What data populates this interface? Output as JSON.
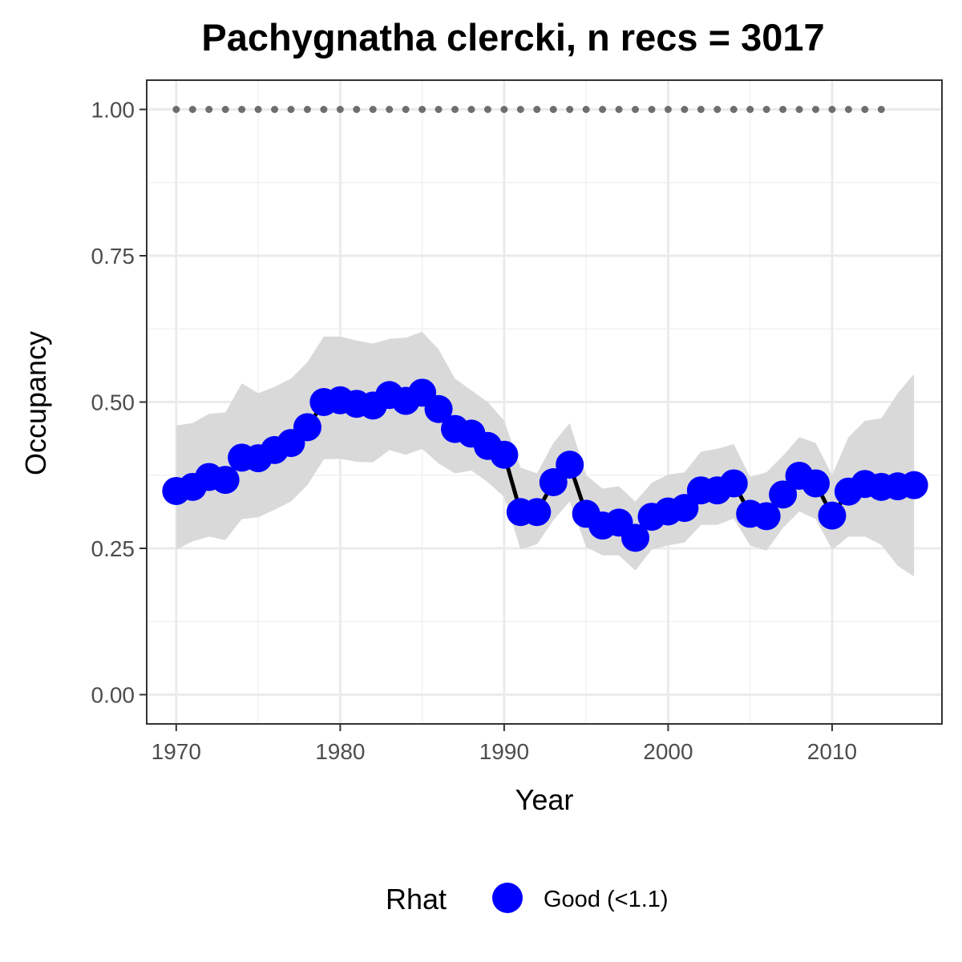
{
  "chart_data": {
    "type": "line",
    "title": "Pachygnatha clercki, n recs = 3017",
    "xlabel": "Year",
    "ylabel": "Occupancy",
    "xlim": [
      1968.2,
      2016.7
    ],
    "ylim": [
      -0.05,
      1.05
    ],
    "x_ticks": [
      1970,
      1980,
      1990,
      2000,
      2010
    ],
    "x_tick_labels": [
      "1970",
      "1980",
      "1990",
      "2000",
      "2010"
    ],
    "y_ticks": [
      0,
      0.25,
      0.5,
      0.75,
      1.0
    ],
    "y_tick_labels": [
      "0.00",
      "0.25",
      "0.50",
      "0.75",
      "1.00"
    ],
    "grid": true,
    "legend_position": "bottom",
    "legend": {
      "title": "Rhat",
      "entries": [
        {
          "label": "Good (<1.1)",
          "color": "#0000ff"
        }
      ]
    },
    "colors": {
      "points": "#0000ff",
      "line": "#000000",
      "ribbon": "#d9d9d9",
      "reference_dots": "#6e6e6e"
    },
    "reference_dots": {
      "x": [
        1970,
        1971,
        1972,
        1973,
        1974,
        1975,
        1976,
        1977,
        1978,
        1979,
        1980,
        1981,
        1982,
        1983,
        1984,
        1985,
        1986,
        1987,
        1988,
        1989,
        1990,
        1991,
        1992,
        1993,
        1994,
        1995,
        1996,
        1997,
        1998,
        1999,
        2000,
        2001,
        2002,
        2003,
        2004,
        2005,
        2006,
        2007,
        2008,
        2009,
        2010,
        2011,
        2012,
        2013
      ],
      "y": 1.0
    },
    "series": [
      {
        "x": [
          1970,
          1971,
          1972,
          1973,
          1974,
          1975,
          1976,
          1977,
          1978,
          1979,
          1980,
          1981,
          1982,
          1983,
          1984,
          1985,
          1986,
          1987,
          1988,
          1989,
          1990,
          1991,
          1992,
          1993,
          1994,
          1995,
          1996,
          1997,
          1998,
          1999,
          2000,
          2001,
          2002,
          2003,
          2004,
          2005,
          2006,
          2007,
          2008,
          2009,
          2010,
          2011,
          2012,
          2013,
          2014,
          2015
        ],
        "y": [
          0.348,
          0.355,
          0.372,
          0.367,
          0.405,
          0.404,
          0.418,
          0.43,
          0.457,
          0.5,
          0.503,
          0.497,
          0.494,
          0.512,
          0.502,
          0.516,
          0.488,
          0.454,
          0.446,
          0.425,
          0.41,
          0.312,
          0.312,
          0.363,
          0.393,
          0.309,
          0.289,
          0.294,
          0.268,
          0.304,
          0.313,
          0.319,
          0.349,
          0.349,
          0.361,
          0.309,
          0.305,
          0.342,
          0.374,
          0.361,
          0.306,
          0.347,
          0.36,
          0.355,
          0.356,
          0.358
        ],
        "lower": [
          0.248,
          0.262,
          0.27,
          0.264,
          0.3,
          0.303,
          0.316,
          0.33,
          0.358,
          0.402,
          0.403,
          0.398,
          0.397,
          0.418,
          0.41,
          0.42,
          0.395,
          0.378,
          0.383,
          0.363,
          0.338,
          0.248,
          0.257,
          0.298,
          0.33,
          0.252,
          0.238,
          0.238,
          0.212,
          0.248,
          0.255,
          0.26,
          0.29,
          0.29,
          0.301,
          0.255,
          0.246,
          0.285,
          0.313,
          0.3,
          0.248,
          0.27,
          0.27,
          0.256,
          0.22,
          0.202
        ],
        "upper": [
          0.46,
          0.464,
          0.48,
          0.482,
          0.532,
          0.515,
          0.526,
          0.54,
          0.568,
          0.612,
          0.612,
          0.605,
          0.6,
          0.608,
          0.61,
          0.62,
          0.59,
          0.54,
          0.52,
          0.5,
          0.468,
          0.388,
          0.378,
          0.43,
          0.464,
          0.375,
          0.352,
          0.356,
          0.33,
          0.362,
          0.376,
          0.38,
          0.415,
          0.42,
          0.428,
          0.372,
          0.38,
          0.408,
          0.44,
          0.43,
          0.375,
          0.44,
          0.468,
          0.472,
          0.515,
          0.548
        ]
      }
    ]
  }
}
